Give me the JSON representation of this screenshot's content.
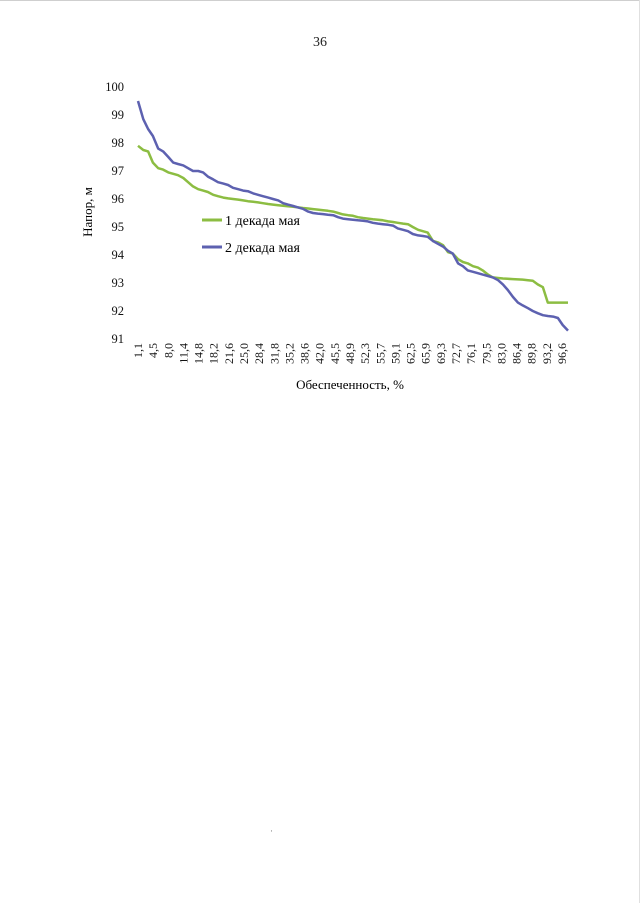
{
  "page": {
    "number": "36"
  },
  "colors": {
    "series1": "#8cbd42",
    "series2": "#5d61b0",
    "text": "#111111"
  },
  "chart_data": {
    "type": "line",
    "xlabel": "Обеспеченность, %",
    "ylabel": "Напор, м",
    "ylim": [
      91,
      100
    ],
    "yticks": [
      "91",
      "92",
      "93",
      "94",
      "95",
      "96",
      "97",
      "98",
      "99",
      "100"
    ],
    "xticks": [
      "1,1",
      "4,5",
      "8,0",
      "11,4",
      "14,8",
      "18,2",
      "21,6",
      "25,0",
      "28,4",
      "31,8",
      "35,2",
      "38,6",
      "42,0",
      "45,5",
      "48,9",
      "52,3",
      "55,7",
      "59,1",
      "62,5",
      "65,9",
      "69,3",
      "72,7",
      "76,1",
      "79,5",
      "83,0",
      "86,4",
      "89,8",
      "93,2",
      "96,6"
    ],
    "xrange": [
      1.1,
      98.9
    ],
    "series": [
      {
        "name": "1 декада мая",
        "x": [
          1.1,
          2.3,
          3.4,
          4.5,
          5.7,
          6.8,
          8.0,
          9.1,
          10.2,
          11.4,
          12.5,
          13.6,
          14.8,
          15.9,
          17.0,
          18.2,
          19.3,
          20.5,
          21.6,
          22.7,
          23.9,
          25.0,
          26.1,
          27.3,
          28.4,
          29.5,
          30.7,
          31.8,
          33.0,
          34.1,
          35.2,
          36.4,
          37.5,
          38.6,
          39.8,
          40.9,
          42.0,
          43.2,
          44.3,
          45.5,
          46.6,
          47.7,
          48.9,
          50.0,
          51.1,
          52.3,
          53.4,
          54.5,
          55.7,
          56.8,
          58.0,
          59.1,
          60.2,
          61.4,
          62.5,
          63.6,
          64.8,
          65.9,
          67.0,
          68.2,
          69.3,
          70.5,
          71.6,
          72.7,
          73.9,
          75.0,
          76.1,
          77.3,
          78.4,
          79.5,
          80.7,
          81.8,
          83.0,
          84.1,
          85.2,
          86.4,
          87.5,
          88.6,
          89.8,
          90.9,
          92.0,
          93.2,
          94.3,
          95.5,
          96.6,
          97.7,
          98.9
        ],
        "y": [
          97.9,
          97.75,
          97.7,
          97.3,
          97.1,
          97.05,
          96.95,
          96.9,
          96.85,
          96.75,
          96.6,
          96.45,
          96.35,
          96.3,
          96.25,
          96.15,
          96.1,
          96.05,
          96.02,
          96.0,
          95.98,
          95.95,
          95.92,
          95.9,
          95.88,
          95.85,
          95.82,
          95.8,
          95.78,
          95.76,
          95.74,
          95.72,
          95.7,
          95.68,
          95.66,
          95.64,
          95.62,
          95.6,
          95.58,
          95.55,
          95.5,
          95.45,
          95.42,
          95.4,
          95.35,
          95.32,
          95.3,
          95.28,
          95.26,
          95.24,
          95.2,
          95.18,
          95.15,
          95.12,
          95.1,
          95.0,
          94.9,
          94.85,
          94.8,
          94.5,
          94.45,
          94.35,
          94.1,
          94.05,
          93.85,
          93.75,
          93.7,
          93.6,
          93.55,
          93.45,
          93.3,
          93.2,
          93.18,
          93.16,
          93.15,
          93.14,
          93.13,
          93.12,
          93.1,
          93.08,
          92.95,
          92.85,
          92.3,
          92.3,
          92.3,
          92.3,
          92.3
        ]
      },
      {
        "name": "2 декада мая",
        "x": [
          1.1,
          2.3,
          3.4,
          4.5,
          5.7,
          6.8,
          8.0,
          9.1,
          10.2,
          11.4,
          12.5,
          13.6,
          14.8,
          15.9,
          17.0,
          18.2,
          19.3,
          20.5,
          21.6,
          22.7,
          23.9,
          25.0,
          26.1,
          27.3,
          28.4,
          29.5,
          30.7,
          31.8,
          33.0,
          34.1,
          35.2,
          36.4,
          37.5,
          38.6,
          39.8,
          40.9,
          42.0,
          43.2,
          44.3,
          45.5,
          46.6,
          47.7,
          48.9,
          50.0,
          51.1,
          52.3,
          53.4,
          54.5,
          55.7,
          56.8,
          58.0,
          59.1,
          60.2,
          61.4,
          62.5,
          63.6,
          64.8,
          65.9,
          67.0,
          68.2,
          69.3,
          70.5,
          71.6,
          72.7,
          73.9,
          75.0,
          76.1,
          77.3,
          78.4,
          79.5,
          80.7,
          81.8,
          83.0,
          84.1,
          85.2,
          86.4,
          87.5,
          88.6,
          89.8,
          90.9,
          92.0,
          93.2,
          94.3,
          95.5,
          96.6,
          97.7,
          98.9
        ],
        "y": [
          99.5,
          98.85,
          98.5,
          98.25,
          97.8,
          97.7,
          97.5,
          97.3,
          97.25,
          97.2,
          97.1,
          97.0,
          97.0,
          96.95,
          96.8,
          96.7,
          96.6,
          96.55,
          96.5,
          96.4,
          96.35,
          96.3,
          96.28,
          96.2,
          96.15,
          96.1,
          96.05,
          96.0,
          95.95,
          95.85,
          95.8,
          95.75,
          95.7,
          95.65,
          95.55,
          95.5,
          95.48,
          95.46,
          95.44,
          95.42,
          95.35,
          95.3,
          95.28,
          95.26,
          95.24,
          95.22,
          95.2,
          95.15,
          95.12,
          95.1,
          95.08,
          95.05,
          94.95,
          94.9,
          94.85,
          94.75,
          94.7,
          94.68,
          94.65,
          94.5,
          94.4,
          94.3,
          94.15,
          94.05,
          93.7,
          93.6,
          93.45,
          93.4,
          93.35,
          93.3,
          93.25,
          93.2,
          93.1,
          92.95,
          92.75,
          92.5,
          92.3,
          92.2,
          92.1,
          92.0,
          91.92,
          91.85,
          91.82,
          91.8,
          91.75,
          91.5,
          91.3
        ]
      }
    ],
    "legend_position": "center-left"
  }
}
